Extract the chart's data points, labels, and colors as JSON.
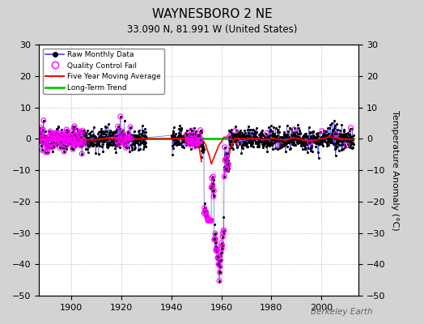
{
  "title": "WAYNESBORO 2 NE",
  "subtitle": "33.090 N, 81.991 W (United States)",
  "ylabel": "Temperature Anomaly (°C)",
  "watermark": "Berkeley Earth",
  "ylim": [
    -50,
    30
  ],
  "yticks": [
    -50,
    -40,
    -30,
    -20,
    -10,
    0,
    10,
    20,
    30
  ],
  "xlim": [
    1887,
    2015
  ],
  "xticks": [
    1900,
    1920,
    1940,
    1960,
    1980,
    2000
  ],
  "background_color": "#d3d3d3",
  "plot_bg_color": "#ffffff",
  "grid_color": "#c8c8c8",
  "raw_color": "#4444ff",
  "raw_dot_color": "#000000",
  "qc_fail_color": "#ff00ff",
  "moving_avg_color": "#ff0000",
  "trend_color": "#00cc00",
  "seed": 12345
}
